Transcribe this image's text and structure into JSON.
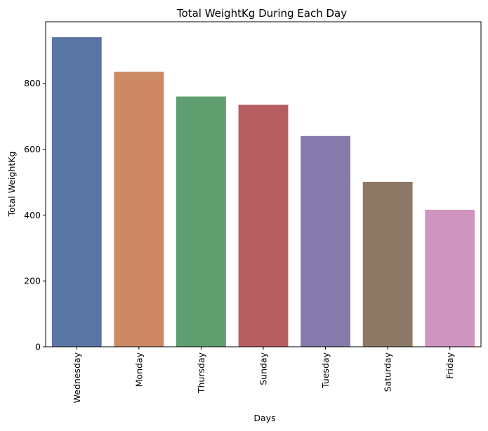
{
  "chart_data": {
    "type": "bar",
    "title": "Total WeightKg During Each Day",
    "xlabel": "Days",
    "ylabel": "Total WeightKg",
    "categories": [
      "Wednesday",
      "Monday",
      "Thursday",
      "Sunday",
      "Tuesday",
      "Saturday",
      "Friday"
    ],
    "values": [
      940,
      835,
      760,
      735,
      640,
      501,
      416
    ],
    "colors": [
      "#5975a4",
      "#cc8963",
      "#5f9e6e",
      "#b55d60",
      "#857aab",
      "#8d7866",
      "#d095bf"
    ],
    "yticks": [
      0,
      200,
      400,
      600,
      800
    ],
    "ylim": [
      0,
      987
    ],
    "grid": false,
    "legend": "none"
  }
}
